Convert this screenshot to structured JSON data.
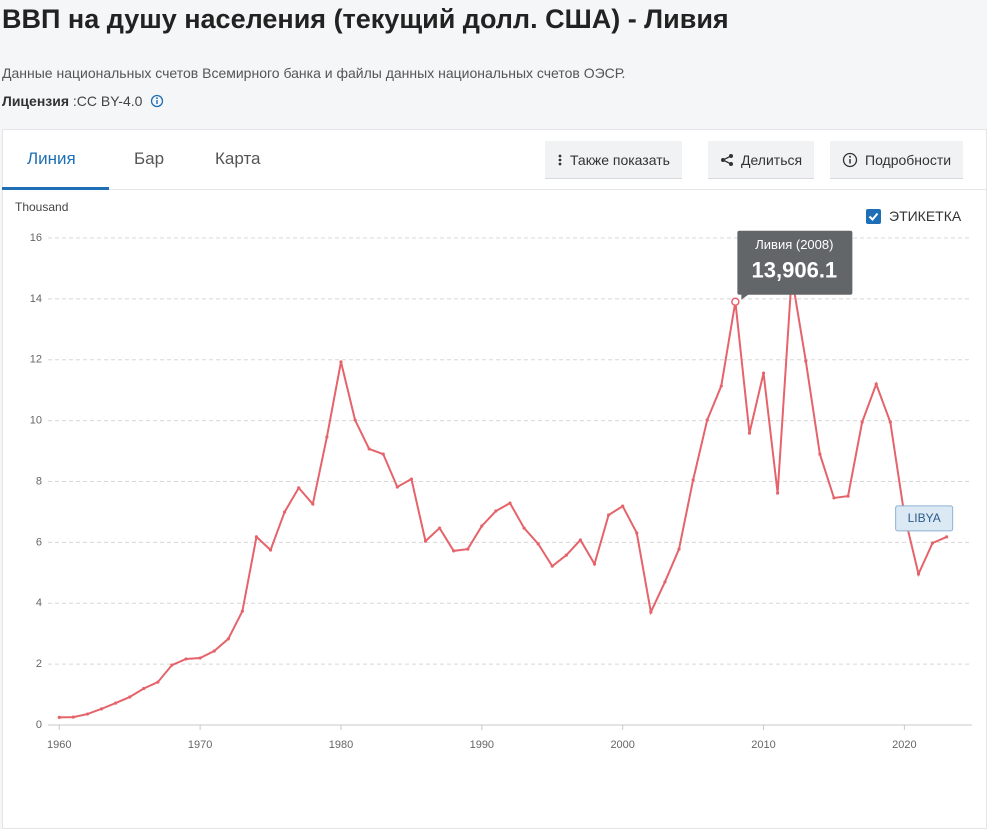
{
  "header": {
    "title": "ВВП на душу населения (текущий долл. США) - Ливия",
    "source": "Данные национальных счетов Всемирного банка и файлы данных национальных счетов ОЭСР.",
    "license_label": "Лицензия",
    "license_value": ":CC BY-4.0"
  },
  "tabs": [
    "Линия",
    "Бар",
    "Карта"
  ],
  "buttons": [
    "Также показать",
    "Делиться",
    "Подробности"
  ],
  "controls": {
    "label_checkbox": "ЭТИКЕТКА"
  },
  "chart_data": {
    "type": "line",
    "y_label": "Thousand",
    "x": [
      1960,
      1961,
      1962,
      1963,
      1964,
      1965,
      1966,
      1967,
      1968,
      1969,
      1970,
      1971,
      1972,
      1973,
      1974,
      1975,
      1976,
      1977,
      1978,
      1979,
      1980,
      1981,
      1982,
      1983,
      1984,
      1985,
      1986,
      1987,
      1988,
      1989,
      1990,
      1991,
      1992,
      1993,
      1994,
      1995,
      1996,
      1997,
      1998,
      1999,
      2000,
      2001,
      2002,
      2003,
      2004,
      2005,
      2006,
      2007,
      2008,
      2009,
      2010,
      2011,
      2012,
      2013,
      2014,
      2015,
      2016,
      2017,
      2018,
      2019,
      2020,
      2021,
      2022,
      2023
    ],
    "series": [
      {
        "name": "LIBYA",
        "color": "#e5636a",
        "values": [
          0.25,
          0.26,
          0.36,
          0.53,
          0.72,
          0.92,
          1.2,
          1.41,
          1.97,
          2.17,
          2.2,
          2.43,
          2.83,
          3.74,
          6.18,
          5.75,
          7.0,
          7.79,
          7.26,
          9.46,
          11.93,
          10.02,
          9.07,
          8.9,
          7.82,
          8.08,
          6.04,
          6.47,
          5.72,
          5.78,
          6.54,
          7.03,
          7.29,
          6.47,
          5.95,
          5.22,
          5.58,
          6.08,
          5.29,
          6.9,
          7.19,
          6.31,
          3.71,
          4.7,
          5.78,
          8.05,
          10.02,
          11.14,
          13.9061,
          9.59,
          11.56,
          7.62,
          14.75,
          11.96,
          8.9,
          7.46,
          7.52,
          9.95,
          11.2,
          9.95,
          6.9,
          4.96,
          5.98,
          6.18
        ]
      }
    ],
    "tooltip": {
      "title": "Ливия (2008)",
      "x": 2008,
      "value": 13.9061,
      "label": "13,906.1"
    },
    "xlim": [
      1959.2,
      2024.8
    ],
    "xticks": [
      1960,
      1970,
      1980,
      1990,
      2000,
      2010,
      2020
    ],
    "ylim": [
      0,
      16
    ],
    "yticks": [
      0,
      2,
      4,
      6,
      8,
      10,
      12,
      14,
      16
    ],
    "grid": true
  }
}
